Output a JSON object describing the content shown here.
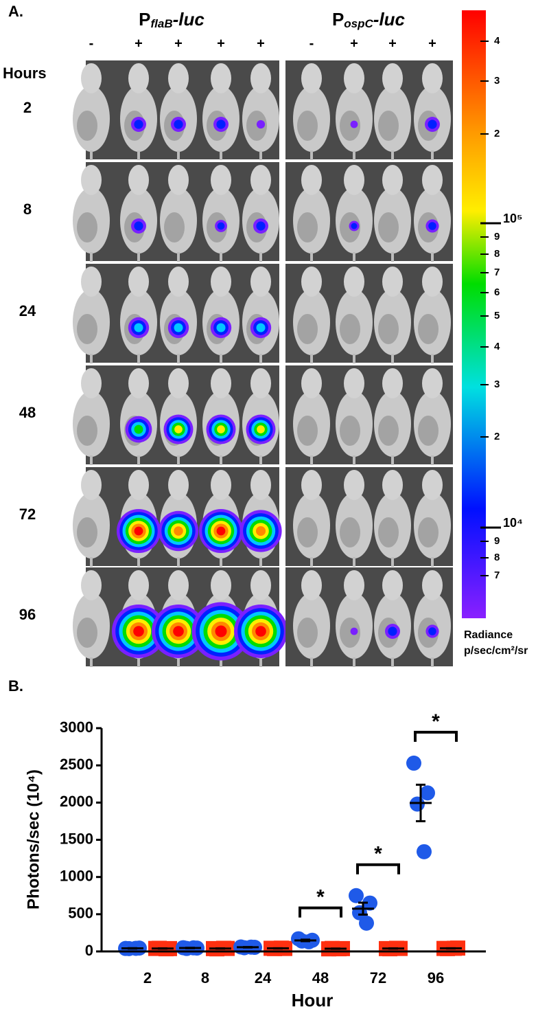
{
  "panel_a": {
    "label": "A.",
    "groups": [
      {
        "prefix": "P",
        "subscript": "flaB",
        "suffix": "-luc",
        "signs": [
          "-",
          "+",
          "+",
          "+",
          "+"
        ]
      },
      {
        "prefix": "P",
        "subscript": "ospC",
        "suffix": "-luc",
        "signs": [
          "-",
          "+",
          "+",
          "+"
        ]
      }
    ],
    "row_header": "Hours",
    "rows": [
      "2",
      "8",
      "24",
      "48",
      "72",
      "96"
    ],
    "colorbar": {
      "tick_labels": [
        "4",
        "3",
        "2",
        "10⁵",
        "9",
        "8",
        "7",
        "6",
        "5",
        "4",
        "3",
        "2",
        "10⁴",
        "9",
        "8",
        "7"
      ],
      "label": "Radiance",
      "unit": "p/sec/cm²/sr"
    }
  },
  "chart_data": {
    "type": "dot",
    "label": "B.",
    "xlabel": "Hour",
    "ylabel": "Photons/sec (10⁴)",
    "categories": [
      "2",
      "8",
      "24",
      "48",
      "72",
      "96"
    ],
    "ylim": [
      0,
      3000
    ],
    "yticks": [
      0,
      500,
      1000,
      1500,
      2000,
      2500,
      3000
    ],
    "series": [
      {
        "color": "#1f5ae8",
        "marker": "circle",
        "values": [
          [
            40,
            45,
            38,
            42
          ],
          [
            50,
            45,
            40,
            48
          ],
          [
            60,
            55,
            50,
            58
          ],
          [
            170,
            150,
            140,
            130
          ],
          [
            750,
            650,
            520,
            380
          ],
          [
            2530,
            2130,
            1980,
            1340
          ]
        ],
        "mean": [
          41,
          46,
          56,
          148,
          575,
          1995
        ],
        "sem": [
          3,
          3,
          3,
          10,
          80,
          245
        ]
      },
      {
        "color": "#ff3010",
        "marker": "square",
        "values": [
          [
            40,
            38,
            42,
            36
          ],
          [
            38,
            40,
            35,
            42
          ],
          [
            42,
            40,
            38,
            44
          ],
          [
            35,
            38,
            40,
            36
          ],
          [
            38,
            40,
            36,
            42
          ],
          [
            40,
            45,
            38,
            42
          ]
        ],
        "mean": [
          39,
          39,
          41,
          37,
          39,
          41
        ],
        "sem": [
          2,
          2,
          2,
          2,
          2,
          2
        ]
      }
    ],
    "significance": [
      null,
      null,
      null,
      "*",
      "*",
      "*"
    ]
  }
}
